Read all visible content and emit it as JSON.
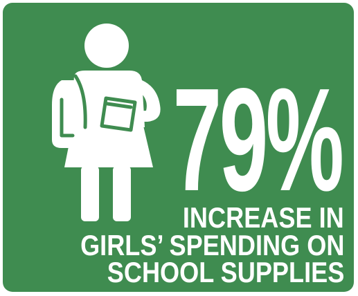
{
  "colors": {
    "background": "#3f8c50",
    "foreground": "#ffffff"
  },
  "icon": "schoolgirl-with-backpack-and-book-icon",
  "stat": {
    "value": "79%",
    "caption_lines": [
      "INCREASE IN",
      "GIRLS’ SPENDING ON",
      "SCHOOL SUPPLIES"
    ]
  }
}
